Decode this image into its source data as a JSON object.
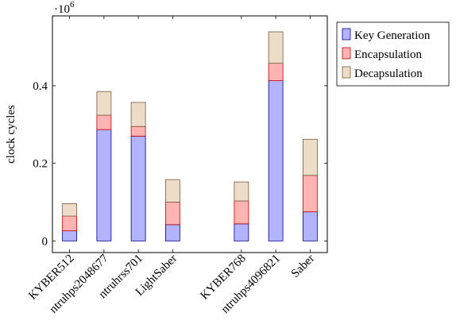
{
  "chart_data": {
    "type": "bar",
    "stacked": true,
    "ylabel": "clock cycles",
    "y_scale_label": "·10",
    "y_scale_exponent": "6",
    "ylim": [
      -0.03,
      0.58
    ],
    "yticks": [
      0,
      0.2,
      0.4
    ],
    "ytick_labels": [
      "0",
      "0.2",
      "0.4"
    ],
    "categories": [
      "KYBER512",
      "ntruhps2048677",
      "ntruhrss701",
      "LightSaber",
      "KYBER768",
      "ntruhps4096821",
      "Saber"
    ],
    "x_positions": [
      1,
      2,
      3,
      4,
      6,
      7,
      8
    ],
    "series": [
      {
        "name": "Key Generation",
        "values": [
          0.026,
          0.287,
          0.27,
          0.042,
          0.044,
          0.413,
          0.075
        ],
        "color": "#b3b3ff",
        "stroke": "#00008b"
      },
      {
        "name": "Encapsulation",
        "values": [
          0.038,
          0.037,
          0.025,
          0.058,
          0.059,
          0.045,
          0.094
        ],
        "color": "#ffb3b3",
        "stroke": "#c80000"
      },
      {
        "name": "Decapsulation",
        "values": [
          0.032,
          0.061,
          0.062,
          0.058,
          0.049,
          0.081,
          0.093
        ],
        "color": "#ecdcc8",
        "stroke": "#7a5a3a"
      }
    ],
    "grid": false,
    "legend_position": "outside-right-top"
  }
}
